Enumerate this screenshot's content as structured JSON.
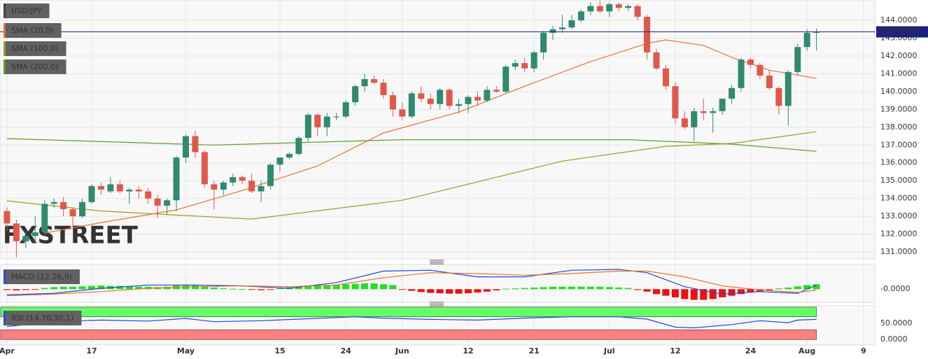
{
  "chart_data": [
    {
      "type": "candlestick",
      "title": "USD/JPY",
      "watermark": "FXSTREET",
      "x": [
        0,
        1,
        2,
        3,
        4,
        5,
        6,
        7,
        8,
        9,
        10,
        11,
        12,
        13,
        14,
        15,
        16,
        17,
        18,
        19,
        20,
        21,
        22,
        23,
        24,
        25,
        26,
        27,
        28,
        29,
        30,
        31,
        32,
        33,
        34,
        35,
        36,
        37,
        38,
        39,
        40,
        41,
        42,
        43,
        44,
        45,
        46,
        47,
        48,
        49,
        50,
        51,
        52,
        53,
        54,
        55,
        56,
        57,
        58,
        59,
        60,
        61,
        62,
        63,
        64,
        65,
        66,
        67,
        68,
        69,
        70,
        71,
        72,
        73,
        74,
        75,
        76,
        77,
        78,
        79,
        80,
        81,
        82,
        83,
        84,
        85,
        86
      ],
      "open": [
        133.3,
        132.6,
        131.6,
        131.9,
        132.1,
        133.7,
        133.8,
        133.4,
        133.0,
        133.8,
        134.7,
        134.4,
        134.8,
        134.4,
        134.5,
        134.4,
        134.0,
        133.6,
        133.9,
        136.3,
        137.5,
        136.6,
        134.8,
        134.5,
        134.9,
        135.2,
        135.0,
        134.4,
        134.7,
        135.9,
        136.3,
        136.5,
        137.4,
        138.7,
        138.0,
        138.6,
        138.6,
        139.4,
        140.3,
        140.7,
        140.5,
        139.8,
        139.0,
        138.6,
        139.9,
        139.6,
        139.3,
        140.1,
        139.2,
        139.3,
        139.7,
        139.5,
        140.1,
        140.0,
        141.4,
        141.6,
        141.3,
        142.2,
        143.3,
        143.5,
        143.6,
        144.0,
        144.5,
        144.8,
        144.5,
        144.9,
        144.7,
        144.8,
        144.2,
        142.2,
        141.3,
        140.3,
        138.5,
        138.0,
        138.9,
        138.8,
        138.9,
        139.6,
        140.2,
        141.8,
        141.5,
        140.9,
        140.2,
        139.2,
        141.1,
        142.5,
        143.3
      ],
      "high": [
        133.5,
        132.8,
        132.2,
        133.0,
        133.9,
        134.0,
        134.1,
        133.5,
        134.0,
        134.8,
        134.9,
        135.2,
        135.0,
        134.6,
        134.7,
        134.6,
        134.2,
        134.0,
        136.4,
        137.6,
        137.8,
        136.7,
        135.0,
        135.0,
        135.4,
        135.3,
        135.4,
        135.0,
        136.0,
        136.3,
        136.6,
        137.5,
        138.8,
        138.8,
        138.8,
        138.8,
        139.5,
        140.4,
        141.0,
        140.9,
        140.7,
        140.0,
        139.4,
        140.0,
        140.3,
        139.9,
        140.2,
        140.2,
        139.6,
        139.8,
        140.0,
        140.3,
        140.3,
        141.5,
        141.8,
        141.9,
        142.3,
        143.4,
        143.7,
        144.3,
        144.3,
        144.6,
        145.0,
        145.1,
        145.0,
        145.0,
        144.9,
        144.9,
        144.3,
        142.4,
        141.5,
        140.5,
        138.9,
        139.1,
        139.6,
        139.1,
        139.6,
        140.4,
        141.9,
        141.9,
        141.6,
        141.2,
        140.3,
        141.2,
        142.7,
        143.5,
        143.55
      ],
      "low": [
        132.2,
        130.7,
        131.2,
        131.5,
        131.9,
        133.5,
        133.0,
        132.4,
        132.9,
        133.7,
        134.2,
        134.3,
        134.3,
        133.7,
        134.0,
        133.7,
        132.9,
        133.1,
        133.3,
        136.0,
        136.3,
        134.6,
        133.4,
        134.2,
        134.7,
        134.8,
        134.3,
        133.8,
        134.5,
        135.5,
        136.2,
        136.4,
        137.2,
        137.5,
        137.5,
        138.4,
        138.5,
        139.2,
        140.0,
        140.4,
        139.6,
        138.6,
        138.4,
        138.5,
        139.4,
        139.0,
        139.0,
        139.0,
        138.8,
        138.8,
        139.2,
        139.4,
        139.9,
        139.9,
        141.2,
        141.1,
        141.1,
        141.8,
        142.9,
        143.3,
        143.5,
        143.9,
        144.3,
        144.4,
        144.2,
        144.5,
        144.5,
        144.0,
        141.8,
        141.2,
        140.1,
        138.2,
        137.9,
        137.2,
        138.4,
        137.7,
        138.7,
        139.3,
        140.0,
        141.3,
        140.7,
        140.1,
        138.7,
        138.1,
        140.9,
        142.3,
        142.3
      ],
      "close": [
        132.6,
        131.6,
        131.9,
        132.1,
        133.7,
        133.8,
        133.4,
        133.0,
        133.8,
        134.7,
        134.5,
        134.8,
        134.4,
        134.5,
        134.4,
        134.0,
        133.6,
        133.9,
        136.3,
        137.5,
        136.6,
        134.8,
        134.5,
        134.9,
        135.2,
        135.0,
        134.4,
        134.7,
        135.9,
        136.3,
        136.5,
        137.4,
        138.7,
        138.0,
        138.6,
        138.6,
        139.4,
        140.3,
        140.7,
        140.5,
        139.8,
        139.0,
        138.6,
        139.9,
        139.6,
        139.3,
        140.1,
        139.2,
        139.3,
        139.7,
        139.5,
        140.1,
        140.0,
        141.4,
        141.6,
        141.3,
        142.2,
        143.3,
        143.5,
        143.6,
        144.0,
        144.5,
        144.8,
        144.5,
        144.9,
        144.7,
        144.8,
        144.2,
        142.2,
        141.3,
        140.3,
        138.5,
        138.0,
        138.9,
        138.8,
        138.9,
        139.6,
        140.2,
        141.8,
        141.5,
        140.9,
        140.2,
        139.2,
        141.1,
        142.5,
        143.3,
        143.353
      ],
      "up_color": "#2f8a70",
      "down_color": "#e0584a",
      "xlim": [
        -0.74,
        92.2
      ],
      "xticks": [
        {
          "value": 0,
          "label": "Apr"
        },
        {
          "value": 9,
          "label": "17"
        },
        {
          "value": 19,
          "label": "May"
        },
        {
          "value": 29,
          "label": "15"
        },
        {
          "value": 36,
          "label": "24"
        },
        {
          "value": 42,
          "label": "Jun"
        },
        {
          "value": 49,
          "label": "12"
        },
        {
          "value": 56,
          "label": "21"
        },
        {
          "value": 64,
          "label": "Jul"
        },
        {
          "value": 71,
          "label": "12"
        },
        {
          "value": 79,
          "label": "24"
        },
        {
          "value": 85,
          "label": "Aug"
        },
        {
          "value": 91,
          "label": "9"
        }
      ],
      "ylim": [
        130.61,
        145.14
      ],
      "yticks": [
        {
          "value": 131,
          "label": "131.0000"
        },
        {
          "value": 132,
          "label": "132.0000"
        },
        {
          "value": 133,
          "label": "133.0000"
        },
        {
          "value": 134,
          "label": "134.0000"
        },
        {
          "value": 135,
          "label": "135.0000"
        },
        {
          "value": 136,
          "label": "136.0000"
        },
        {
          "value": 137,
          "label": "137.0000"
        },
        {
          "value": 138,
          "label": "138.0000"
        },
        {
          "value": 139,
          "label": "139.0000"
        },
        {
          "value": 140,
          "label": "140.0000"
        },
        {
          "value": 141,
          "label": "141.0000"
        },
        {
          "value": 142,
          "label": "142.0000"
        },
        {
          "value": 143,
          "label": "143.0000"
        },
        {
          "value": 144,
          "label": "144.0000"
        }
      ],
      "grid": true,
      "last_price": {
        "value": 143.353,
        "label": "143.3530"
      },
      "last_price_color": "#1a237e",
      "series": [
        {
          "name": "SMA (20,0)",
          "color": "#e8722c",
          "x": [
            4,
            10,
            18,
            25,
            33,
            40,
            48,
            55,
            62,
            68,
            70,
            74,
            77,
            81,
            86
          ],
          "values": [
            132.06,
            132.65,
            133.36,
            134.45,
            135.83,
            137.68,
            138.85,
            140.3,
            141.68,
            142.7,
            142.9,
            142.59,
            141.92,
            141.2,
            140.74
          ]
        },
        {
          "name": "SMA (100,0)",
          "color": "#a49b1c",
          "x": [
            0,
            10,
            22,
            26,
            42,
            59,
            70,
            77,
            86
          ],
          "values": [
            133.87,
            133.3,
            132.96,
            132.85,
            133.9,
            136.1,
            136.93,
            137.09,
            137.75
          ]
        },
        {
          "name": "SMA (200,0)",
          "color": "#5c9e1e",
          "x": [
            0,
            22,
            42,
            66,
            77,
            86
          ],
          "values": [
            137.36,
            137.0,
            137.3,
            137.3,
            137.05,
            136.65
          ]
        }
      ]
    },
    {
      "type": "macd",
      "title": "MACD (12,26,9)",
      "title_color": "#2a4fd6",
      "x": [
        0,
        1,
        2,
        3,
        4,
        5,
        6,
        7,
        8,
        9,
        10,
        11,
        12,
        13,
        14,
        15,
        16,
        17,
        18,
        19,
        20,
        21,
        22,
        23,
        24,
        25,
        26,
        27,
        28,
        29,
        30,
        31,
        32,
        33,
        34,
        35,
        36,
        37,
        38,
        39,
        40,
        41,
        42,
        43,
        44,
        45,
        46,
        47,
        48,
        49,
        50,
        51,
        52,
        53,
        54,
        55,
        56,
        57,
        58,
        59,
        60,
        61,
        62,
        63,
        64,
        65,
        66,
        67,
        68,
        69,
        70,
        71,
        72,
        73,
        74,
        75,
        76,
        77,
        78,
        79,
        80,
        81,
        82,
        83,
        84,
        85,
        86
      ],
      "histogram": [
        -0.1,
        -0.15,
        -0.1,
        -0.05,
        0.15,
        0.25,
        0.3,
        0.3,
        0.35,
        0.4,
        0.45,
        0.4,
        0.4,
        0.35,
        0.3,
        0.3,
        0.25,
        0.3,
        0.45,
        0.55,
        0.5,
        0.35,
        0.2,
        0.1,
        0.05,
        0.02,
        -0.08,
        -0.12,
        -0.05,
        0.1,
        0.25,
        0.35,
        0.45,
        0.5,
        0.5,
        0.55,
        0.6,
        0.65,
        0.7,
        0.7,
        0.6,
        0.5,
        -0.05,
        -0.2,
        -0.35,
        -0.45,
        -0.5,
        -0.55,
        -0.55,
        -0.5,
        -0.4,
        -0.3,
        -0.15,
        0.05,
        0.1,
        0.15,
        0.2,
        0.25,
        0.3,
        0.3,
        0.3,
        0.3,
        0.3,
        0.3,
        0.25,
        0.2,
        0.15,
        -0.1,
        -0.3,
        -0.6,
        -0.8,
        -1.0,
        -1.2,
        -1.3,
        -1.3,
        -1.2,
        -1.0,
        -0.8,
        -0.6,
        -0.4,
        -0.3,
        -0.1,
        0.1,
        0.2,
        0.35,
        0.5,
        0.6
      ],
      "up_color": "#22e022",
      "down_color": "#ee1111",
      "xlim": [
        -0.74,
        92.2
      ],
      "ylim": [
        -1.6,
        3.0
      ],
      "yticks": [
        {
          "value": 0,
          "label": "-0.0000"
        }
      ],
      "series": [
        {
          "color": "#2244dd",
          "x": [
            0,
            5,
            10,
            15,
            20,
            25,
            30,
            35,
            40,
            45,
            50,
            55,
            60,
            65,
            68,
            72,
            76,
            80,
            84,
            86
          ],
          "values": [
            -0.7,
            -0.5,
            0.1,
            0.5,
            0.5,
            0.4,
            0.1,
            0.8,
            2.2,
            2.3,
            1.5,
            1.5,
            2.3,
            2.4,
            2.0,
            0.3,
            -0.6,
            -0.3,
            -0.5,
            0.5
          ]
        },
        {
          "color": "#e8722c",
          "x": [
            0,
            5,
            10,
            15,
            20,
            25,
            30,
            35,
            40,
            45,
            50,
            55,
            60,
            65,
            68,
            72,
            76,
            80,
            84,
            86
          ],
          "values": [
            -0.8,
            -0.6,
            -0.3,
            0.1,
            0.3,
            0.4,
            0.3,
            0.5,
            1.4,
            2.0,
            1.9,
            1.7,
            1.9,
            2.2,
            2.2,
            1.5,
            0.4,
            -0.1,
            -0.4,
            -0.1
          ]
        }
      ]
    },
    {
      "type": "rsi",
      "title": "RSI (14,70,30,1)",
      "title_color": "#2a4fd6",
      "xlim": [
        -0.74,
        92.2
      ],
      "ylim": [
        -17,
        104
      ],
      "yticks": [
        {
          "value": 50,
          "label": "50.0000"
        },
        {
          "value": 0,
          "label": "0.0000"
        }
      ],
      "zones": [
        [
          70,
          100
        ],
        [
          0,
          30
        ]
      ],
      "zone_colors": [
        "#66ff66",
        "#ff8080"
      ],
      "series": [
        {
          "color": "#2244dd",
          "x": [
            0,
            5,
            10,
            15,
            19,
            22,
            27,
            31,
            37,
            40,
            45,
            50,
            55,
            60,
            65,
            68,
            71,
            73,
            77,
            80,
            83,
            84,
            86
          ],
          "values": [
            40,
            55,
            60,
            57,
            65,
            55,
            58,
            63,
            70,
            66,
            62,
            60,
            66,
            70,
            70,
            63,
            38,
            36,
            46,
            58,
            52,
            60,
            62
          ]
        }
      ]
    }
  ]
}
